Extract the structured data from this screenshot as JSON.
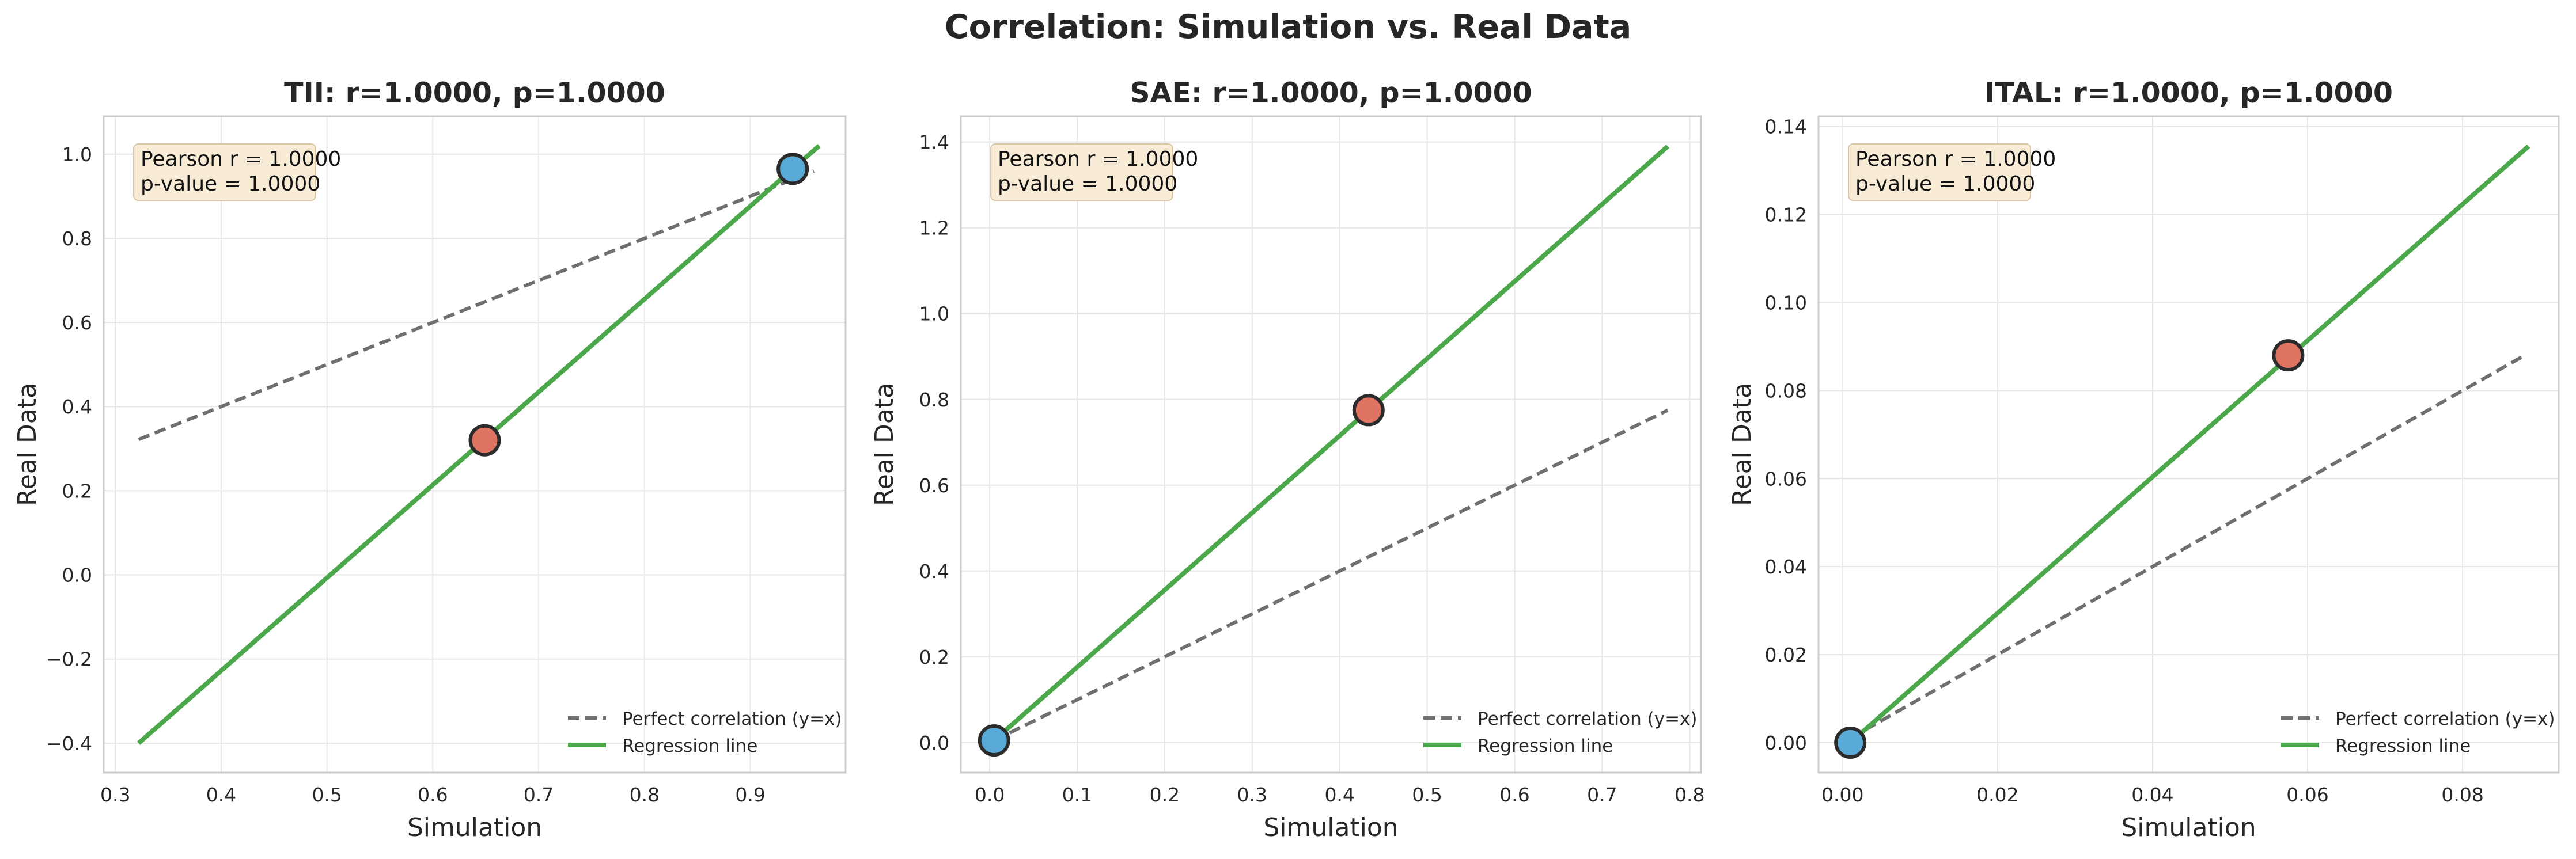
{
  "figure": {
    "title": "Correlation: Simulation vs. Real Data",
    "colors": {
      "background": "#ffffff",
      "frame": "#cccccc",
      "grid": "#e6e6e6",
      "text": "#262626",
      "identity": "#6f6f6f",
      "regression": "#4aa84a",
      "point_blue": "#5aaad8",
      "point_red": "#e07463",
      "point_edge": "#2b2b2b",
      "annot_fill": "#f8ecd6",
      "annot_edge": "#d9c7a6"
    }
  },
  "chart_data": [
    {
      "type": "scatter",
      "title": "TII: r=1.0000, p=1.0000",
      "xlabel": "Simulation",
      "ylabel": "Real Data",
      "xlim": [
        0.289,
        0.99
      ],
      "ylim": [
        -0.47,
        1.09
      ],
      "xticks": [
        0.3,
        0.4,
        0.5,
        0.6,
        0.7,
        0.8,
        0.9
      ],
      "xtick_labels": [
        "0.3",
        "0.4",
        "0.5",
        "0.6",
        "0.7",
        "0.8",
        "0.9"
      ],
      "yticks": [
        -0.4,
        -0.2,
        0.0,
        0.2,
        0.4,
        0.6,
        0.8,
        1.0
      ],
      "ytick_labels": [
        "−0.4",
        "−0.2",
        "0.0",
        "0.2",
        "0.4",
        "0.6",
        "0.8",
        "1.0"
      ],
      "points": [
        {
          "x": 0.649,
          "y": 0.32,
          "color": "red"
        },
        {
          "x": 0.94,
          "y": 0.965,
          "color": "blue"
        }
      ],
      "identity_line": {
        "x": [
          0.322,
          0.96
        ],
        "y": [
          0.322,
          0.96
        ]
      },
      "regression_line": {
        "x": [
          0.322,
          0.965
        ],
        "y": [
          -0.4,
          1.02
        ]
      },
      "annotation": [
        "Pearson r = 1.0000",
        "p-value = 1.0000"
      ],
      "legend": [
        "Perfect correlation (y=x)",
        "Regression line"
      ],
      "legend_loc": "lower right",
      "grid": true
    },
    {
      "type": "scatter",
      "title": "SAE: r=1.0000, p=1.0000",
      "xlabel": "Simulation",
      "ylabel": "Real Data",
      "xlim": [
        -0.033,
        0.813
      ],
      "ylim": [
        -0.07,
        1.46
      ],
      "xticks": [
        0.0,
        0.1,
        0.2,
        0.3,
        0.4,
        0.5,
        0.6,
        0.7,
        0.8
      ],
      "xtick_labels": [
        "0.0",
        "0.1",
        "0.2",
        "0.3",
        "0.4",
        "0.5",
        "0.6",
        "0.7",
        "0.8"
      ],
      "yticks": [
        0.0,
        0.2,
        0.4,
        0.6,
        0.8,
        1.0,
        1.2,
        1.4
      ],
      "ytick_labels": [
        "0.0",
        "0.2",
        "0.4",
        "0.6",
        "0.8",
        "1.0",
        "1.2",
        "1.4"
      ],
      "points": [
        {
          "x": 0.005,
          "y": 0.005,
          "color": "blue"
        },
        {
          "x": 0.433,
          "y": 0.775,
          "color": "red"
        }
      ],
      "identity_line": {
        "x": [
          0.005,
          0.775
        ],
        "y": [
          0.005,
          0.775
        ]
      },
      "regression_line": {
        "x": [
          0.005,
          0.775
        ],
        "y": [
          0.005,
          1.39
        ]
      },
      "annotation": [
        "Pearson r = 1.0000",
        "p-value = 1.0000"
      ],
      "legend": [
        "Perfect correlation (y=x)",
        "Regression line"
      ],
      "legend_loc": "lower right",
      "grid": true
    },
    {
      "type": "scatter",
      "title": "ITAL: r=1.0000, p=1.0000",
      "xlabel": "Simulation",
      "ylabel": "Real Data",
      "xlim": [
        -0.0031,
        0.0924
      ],
      "ylim": [
        -0.0068,
        0.1423
      ],
      "xticks": [
        0.0,
        0.02,
        0.04,
        0.06,
        0.08
      ],
      "xtick_labels": [
        "0.00",
        "0.02",
        "0.04",
        "0.06",
        "0.08"
      ],
      "yticks": [
        0.0,
        0.02,
        0.04,
        0.06,
        0.08,
        0.1,
        0.12,
        0.14
      ],
      "ytick_labels": [
        "0.00",
        "0.02",
        "0.04",
        "0.06",
        "0.08",
        "0.10",
        "0.12",
        "0.14"
      ],
      "points": [
        {
          "x": 0.001,
          "y": 0.0,
          "color": "blue"
        },
        {
          "x": 0.0575,
          "y": 0.088,
          "color": "red"
        }
      ],
      "identity_line": {
        "x": [
          0.001,
          0.088
        ],
        "y": [
          0.001,
          0.088
        ]
      },
      "regression_line": {
        "x": [
          0.001,
          0.0885
        ],
        "y": [
          0.0,
          0.1355
        ]
      },
      "annotation": [
        "Pearson r = 1.0000",
        "p-value = 1.0000"
      ],
      "legend": [
        "Perfect correlation (y=x)",
        "Regression line"
      ],
      "legend_loc": "lower right",
      "grid": true
    }
  ]
}
